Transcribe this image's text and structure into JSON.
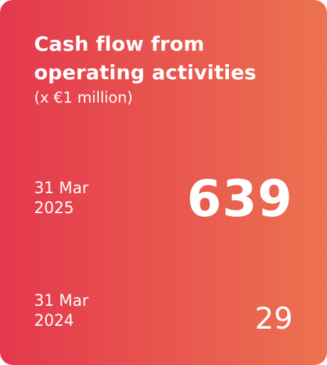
{
  "card": {
    "title_line1": "Cash flow from",
    "title_line2": "operating activities",
    "unit": "(x €1 million)",
    "current": {
      "date_line1": "31 Mar",
      "date_line2": "2025",
      "value": "639"
    },
    "prior": {
      "date_line1": "31 Mar",
      "date_line2": "2024",
      "value": "29"
    }
  },
  "colors": {
    "gradient_start": "#e4384d",
    "gradient_end": "#ec7250",
    "text": "#ffffff"
  }
}
